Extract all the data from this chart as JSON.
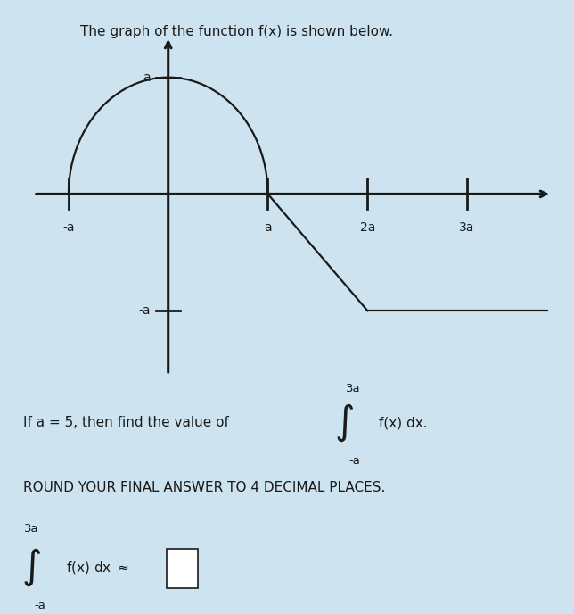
{
  "title": "The graph of the function f(x) is shown below.",
  "a": 5,
  "background_color": "#cde4f0",
  "curve_color": "#1a1a1a",
  "axis_color": "#1a1a1a",
  "text_color": "#1a1a1a",
  "problem_text_1": "If a = 5, then find the value of",
  "problem_text_2": "ROUND YOUR FINAL ANSWER TO 4 DECIMAL PLACES.",
  "integral_label_top": "3a",
  "integral_label_bottom": "-a",
  "integral_text": "f(x) dx.",
  "answer_integral_top": "3a",
  "answer_integral_bottom": "-a",
  "xlabel_neg_a": "-a",
  "xlabel_a": "a",
  "xlabel_2a": "2a",
  "xlabel_3a": "3a",
  "ylabel_a": "a",
  "ylabel_neg_a": "-a",
  "title_fontsize": 11,
  "label_fontsize": 10,
  "body_fontsize": 11
}
